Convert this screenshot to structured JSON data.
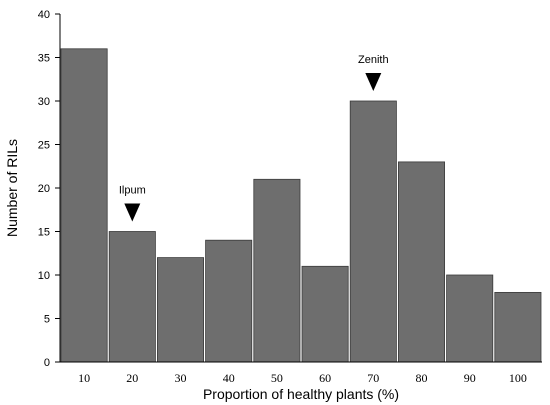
{
  "chart_data": {
    "type": "bar",
    "categories": [
      "10",
      "20",
      "30",
      "40",
      "50",
      "60",
      "70",
      "80",
      "90",
      "100"
    ],
    "values": [
      36,
      15,
      12,
      14,
      21,
      11,
      30,
      23,
      10,
      8
    ],
    "xlabel": "Proportion of healthy plants (%)",
    "ylabel": "Number of RILs",
    "ylim": [
      0,
      40
    ],
    "yticks": [
      0,
      5,
      10,
      15,
      20,
      25,
      30,
      35,
      40
    ],
    "grid": false,
    "bar_color": "#6e6e6e",
    "annotations": [
      {
        "text": "Ilpum",
        "category": "20",
        "marker": "down-triangle"
      },
      {
        "text": "Zenith",
        "category": "70",
        "marker": "down-triangle"
      }
    ]
  }
}
